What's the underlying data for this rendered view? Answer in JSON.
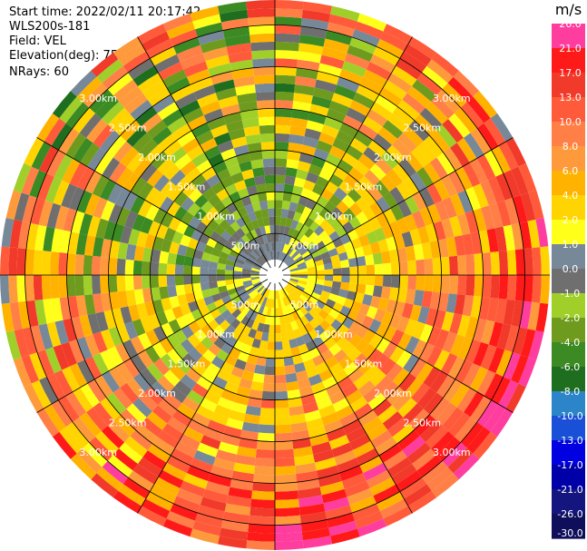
{
  "header": {
    "start_time": "Start time: 2022/02/11 20:17:42",
    "site": "WLS200s-181",
    "field": "Field: VEL",
    "elevation": "Elevation(deg): 75.00",
    "nrays": "NRays: 60"
  },
  "chart_data": {
    "type": "polar_ppi",
    "field": "VEL",
    "units": "m/s",
    "nrays": 60,
    "elevation_deg": 75.0,
    "max_range_km": 3.3,
    "range_rings_km": [
      0.5,
      1.0,
      1.5,
      2.0,
      2.5,
      3.0
    ],
    "ring_labels": [
      "500m",
      "1.00km",
      "1.50km",
      "2.00km",
      "2.50km",
      "3.00km"
    ],
    "colorbar": {
      "title": "m/s",
      "ticks": [
        "26.0",
        "21.0",
        "17.0",
        "13.0",
        "10.0",
        "8.0",
        "6.0",
        "4.0",
        "2.0",
        "1.0",
        "0.0",
        "-1.0",
        "-2.0",
        "-4.0",
        "-6.0",
        "-8.0",
        "-10.0",
        "-13.0",
        "-17.0",
        "-21.0",
        "-26.0",
        "-30.0"
      ],
      "colors": [
        "#ff3d9e",
        "#ff1a1a",
        "#f23a2a",
        "#ff5a3a",
        "#ff7f46",
        "#ff9a3c",
        "#ffb300",
        "#ffd400",
        "#ffff1a",
        "#778899",
        "#6f6f6f",
        "#a0cf2a",
        "#6e9a1e",
        "#3b8a23",
        "#1f6e1f",
        "#2b85c8",
        "#1a4fd8",
        "#0000e0",
        "#0000a8",
        "#151580",
        "#0e0e5a"
      ]
    },
    "bands": [
      {
        "r_km": [
          0.08,
          0.5
        ],
        "mean_ms": 1.0
      },
      {
        "r_km": [
          0.5,
          1.0
        ],
        "mean_ms": 0.5
      },
      {
        "r_km": [
          1.0,
          1.5
        ],
        "mean_ms": 1.5
      },
      {
        "r_km": [
          1.5,
          2.0
        ],
        "mean_ms": 3.0
      },
      {
        "r_km": [
          2.0,
          2.5
        ],
        "mean_ms": 5.0
      },
      {
        "r_km": [
          2.5,
          3.0
        ],
        "mean_ms": 8.0
      },
      {
        "r_km": [
          3.0,
          3.3
        ],
        "mean_ms": 10.0
      }
    ]
  }
}
